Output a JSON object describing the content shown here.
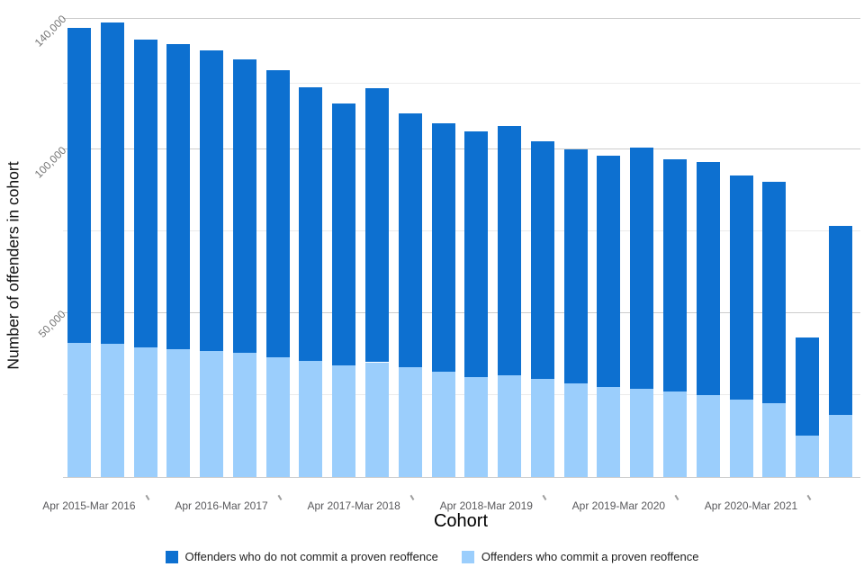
{
  "chart_data": {
    "type": "bar",
    "stacked": true,
    "title": "",
    "xlabel": "Cohort",
    "ylabel": "Number of offenders in cohort",
    "ylim": [
      0,
      140000
    ],
    "grid": true,
    "legend_position": "bottom",
    "x_group_labels": [
      "Apr 2015-Mar 2016",
      "Apr 2016-Mar 2017",
      "Apr 2017-Mar 2018",
      "Apr 2018-Mar 2019",
      "Apr 2019-Mar 2020",
      "Apr 2020-Mar 2021"
    ],
    "bars_per_group": 4,
    "yticks": [
      {
        "value": 140000,
        "label": "140,000"
      },
      {
        "value": 100000,
        "label": "100,000"
      },
      {
        "value": 50000,
        "label": "50,000"
      }
    ],
    "y_major_gridlines": [
      0,
      50000,
      100000,
      140000
    ],
    "y_minor_gridlines": [
      25000,
      75000,
      120000
    ],
    "series": [
      {
        "name": "Offenders who do not commit a proven reoffence",
        "color": "#0d70d0",
        "stack_position": "top",
        "values": [
          96000,
          98000,
          94000,
          93000,
          91500,
          89500,
          87500,
          83500,
          80000,
          83500,
          77500,
          76000,
          75000,
          76000,
          72500,
          71500,
          70500,
          73500,
          71000,
          71000,
          68500,
          67500,
          30000,
          57500
        ]
      },
      {
        "name": "Offenders who commit a proven reoffence",
        "color": "#9bcefc",
        "stack_position": "bottom",
        "values": [
          41000,
          40500,
          39500,
          39000,
          38500,
          38000,
          36500,
          35500,
          34000,
          35000,
          33500,
          32000,
          30500,
          31000,
          30000,
          28500,
          27500,
          27000,
          26000,
          25000,
          23500,
          22500,
          12500,
          19000
        ]
      }
    ],
    "totals": [
      137000,
      138500,
      133500,
      132000,
      130000,
      127500,
      124000,
      119000,
      114000,
      118500,
      111000,
      108000,
      105500,
      107000,
      102500,
      100000,
      98000,
      100500,
      97000,
      96000,
      92000,
      90000,
      42500,
      76500
    ]
  },
  "colors": {
    "major_gridline": "#cccccc",
    "minor_gridline": "#ebebeb",
    "ytick_text": "#757575",
    "xtick_text": "#58585b",
    "tick_mark": "#9e9e9e"
  }
}
